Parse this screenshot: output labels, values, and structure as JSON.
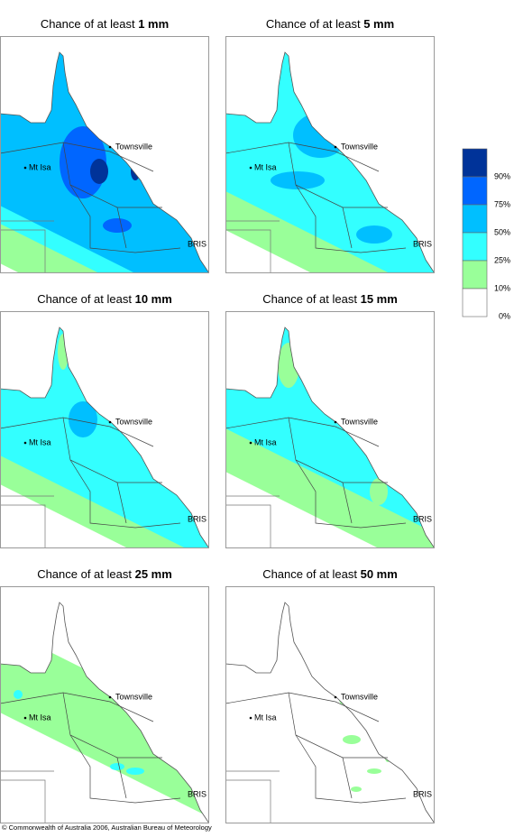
{
  "panels": [
    {
      "title": "Chance of at least ",
      "amount": "1 mm"
    },
    {
      "title": "Chance of at least ",
      "amount": "5 mm"
    },
    {
      "title": "Chance of at least ",
      "amount": "10 mm"
    },
    {
      "title": "Chance of at least ",
      "amount": "15 mm"
    },
    {
      "title": "Chance of at least ",
      "amount": "25 mm"
    },
    {
      "title": "Chance of at least ",
      "amount": "50 mm"
    }
  ],
  "places": [
    "Townsville",
    "Mt Isa",
    "BRIS"
  ],
  "legend": {
    "labels": [
      "90%",
      "75%",
      "50%",
      "25%",
      "10%",
      "0%"
    ],
    "colors": [
      "#003399",
      "#0066ff",
      "#00bfff",
      "#33ffff",
      "#99ff99",
      "#ffffff"
    ]
  },
  "footer": "© Commonwealth of Australia 2006, Australian Bureau of Meteorology"
}
